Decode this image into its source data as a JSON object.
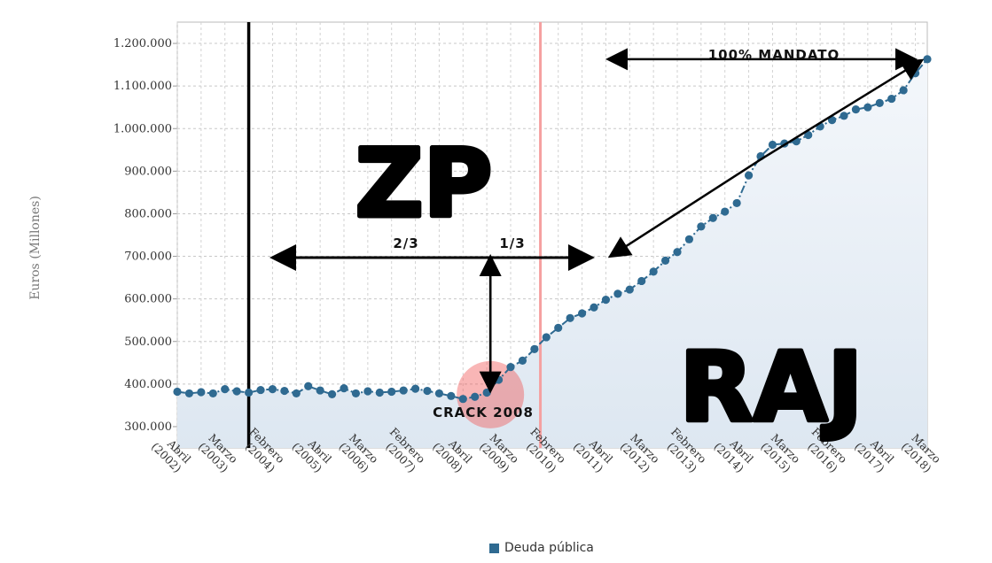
{
  "chart_data": {
    "type": "line",
    "title": "",
    "ylabel": "Euros (Millones)",
    "xlabel": "",
    "ylim": [
      250000,
      1250000
    ],
    "yticks": [
      300000,
      400000,
      500000,
      600000,
      700000,
      800000,
      900000,
      1000000,
      1100000,
      1200000
    ],
    "ytick_labels": [
      "300.000",
      "400.000",
      "500.000",
      "600.000",
      "700.000",
      "800.000",
      "900.000",
      "1.000.000",
      "1.100.000",
      "1.200.000"
    ],
    "x_index_range": [
      0,
      63
    ],
    "xtick_labels": [
      [
        "Abril",
        "(2002)"
      ],
      [
        "Marzo",
        "(2003)"
      ],
      [
        "Febrero",
        "(2004)"
      ],
      [
        "Abril",
        "(2005)"
      ],
      [
        "Marzo",
        "(2006)"
      ],
      [
        "Febrero",
        "(2007)"
      ],
      [
        "Abril",
        "(2008)"
      ],
      [
        "Marzo",
        "(2009)"
      ],
      [
        "Febrero",
        "(2010)"
      ],
      [
        "Abril",
        "(2011)"
      ],
      [
        "Marzo",
        "(2012)"
      ],
      [
        "Febrero",
        "(2013)"
      ],
      [
        "Abril",
        "(2014)"
      ],
      [
        "Marzo",
        "(2015)"
      ],
      [
        "Febrero",
        "(2016)"
      ],
      [
        "Abril",
        "(2017)"
      ],
      [
        "Marzo",
        "(2018)"
      ]
    ],
    "series": [
      {
        "name": "Deuda pública",
        "color": "#2f6a91",
        "values": [
          382000,
          378000,
          381000,
          378000,
          388000,
          383000,
          380000,
          386000,
          388000,
          384000,
          378000,
          395000,
          385000,
          376000,
          390000,
          378000,
          383000,
          380000,
          382000,
          385000,
          389000,
          384000,
          378000,
          372000,
          365000,
          370000,
          380000,
          410000,
          440000,
          455000,
          482000,
          510000,
          532000,
          555000,
          566000,
          580000,
          598000,
          612000,
          622000,
          642000,
          664000,
          690000,
          710000,
          740000,
          770000,
          790000,
          805000,
          825000,
          890000,
          935000,
          962000,
          965000,
          970000,
          985000,
          1005000,
          1020000,
          1030000,
          1045000,
          1050000,
          1060000,
          1070000,
          1090000,
          1130000,
          1163000
        ]
      }
    ],
    "vertical_markers": [
      {
        "x_index": 6,
        "color": "#000000"
      },
      {
        "x_index": 30.5,
        "color": "#f5a0a0"
      }
    ],
    "annotations": {
      "zp": "ZP",
      "raj": "RAJ",
      "two_thirds": "2/3",
      "one_third": "1/3",
      "mandato": "100% MANDATO",
      "crack": "CRACK 2008"
    },
    "legend": "Deuda pública",
    "legend_position": "bottom-center",
    "grid": true
  }
}
